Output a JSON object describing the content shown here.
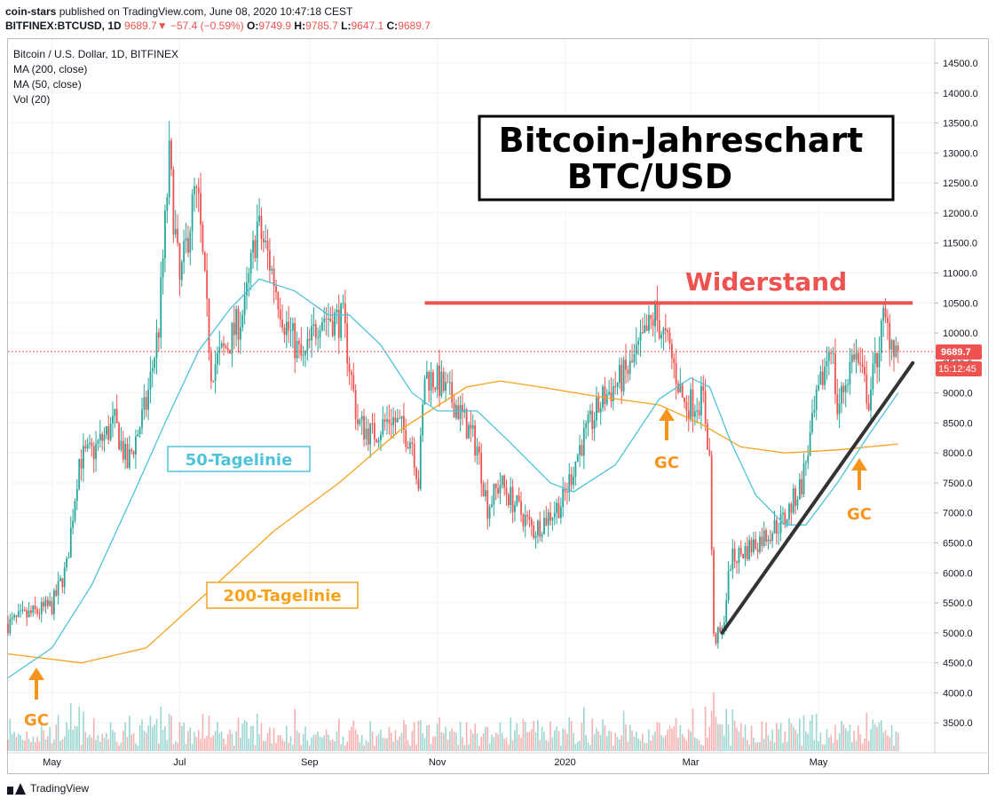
{
  "header": {
    "author": "coin-stars",
    "published_text": "published on TradingView.com, June 08, 2020 10:47:18 CEST",
    "symbol": "BITFINEX:BTCUSD, 1D",
    "last": "9689.7",
    "change": "−57.4 (−0.59%)",
    "open_label": "O:",
    "open": "9749.9",
    "high_label": "H:",
    "high": "9785.7",
    "low_label": "L:",
    "low": "9647.1",
    "close_label": "C:",
    "close": "9689.7"
  },
  "legend": {
    "title": "Bitcoin / U.S. Dollar, 1D, BITFINEX",
    "ma200": "MA (200, close)",
    "ma50": "MA (50, close)",
    "vol": "Vol (20)"
  },
  "footer": {
    "brand": "TradingView"
  },
  "colors": {
    "up": "#26a69a",
    "down": "#ef5350",
    "ma50": "#4fc3d9",
    "ma200": "#f7a21b",
    "resistance": "#ef5350",
    "trend": "#333333",
    "gc": "#f7941d"
  },
  "annotations": {
    "title_line1": "Bitcoin-Jahreschart",
    "title_line2": "BTC/USD",
    "resistance_label": "Widerstand",
    "ma50_label": "50-Tagelinie",
    "ma200_label": "200-Tagelinie",
    "gc_label": "GC"
  },
  "chart_data": {
    "type": "candlestick",
    "y_unit": "USD",
    "ylim": [
      3000,
      14900
    ],
    "y_ticks": [
      "3500.0",
      "4000.0",
      "4500.0",
      "5000.0",
      "5500.0",
      "6000.0",
      "6500.0",
      "7000.0",
      "7500.0",
      "8000.0",
      "8500.0",
      "9000.0",
      "9500.0",
      "10000.0",
      "10500.0",
      "11000.0",
      "11500.0",
      "12000.0",
      "12500.0",
      "13000.0",
      "13500.0",
      "14000.0",
      "14500.0"
    ],
    "x_labels": [
      {
        "label": "May",
        "date": "2019-05-01"
      },
      {
        "label": "Jul",
        "date": "2019-07-01"
      },
      {
        "label": "Sep",
        "date": "2019-09-01"
      },
      {
        "label": "Nov",
        "date": "2019-11-01"
      },
      {
        "label": "2020",
        "date": "2020-01-01"
      },
      {
        "label": "Mar",
        "date": "2020-03-01"
      },
      {
        "label": "May",
        "date": "2020-05-01"
      }
    ],
    "x_range": [
      "2019-04-10",
      "2020-06-08"
    ],
    "last_price": "9689.7",
    "countdown": "15:12:45",
    "resistance": {
      "price": 10500,
      "from": "2019-10-26",
      "to": "2020-06-15"
    },
    "trendline": {
      "from": {
        "date": "2020-03-16",
        "price": 5000
      },
      "to": {
        "date": "2020-06-15",
        "price": 9500
      }
    },
    "price_path": [
      [
        "2019-04-10",
        5150
      ],
      [
        "2019-04-20",
        5300
      ],
      [
        "2019-05-01",
        5450
      ],
      [
        "2019-05-08",
        6100
      ],
      [
        "2019-05-14",
        7900
      ],
      [
        "2019-05-20",
        8000
      ],
      [
        "2019-05-31",
        8500
      ],
      [
        "2019-06-06",
        7800
      ],
      [
        "2019-06-15",
        8800
      ],
      [
        "2019-06-21",
        10100
      ],
      [
        "2019-06-26",
        12900
      ],
      [
        "2019-06-28",
        12000
      ],
      [
        "2019-07-01",
        10800
      ],
      [
        "2019-07-08",
        12300
      ],
      [
        "2019-07-10",
        12100
      ],
      [
        "2019-07-16",
        9400
      ],
      [
        "2019-07-24",
        9800
      ],
      [
        "2019-08-01",
        10400
      ],
      [
        "2019-08-07",
        11800
      ],
      [
        "2019-08-12",
        11300
      ],
      [
        "2019-08-20",
        10200
      ],
      [
        "2019-08-29",
        9500
      ],
      [
        "2019-09-06",
        10300
      ],
      [
        "2019-09-17",
        10200
      ],
      [
        "2019-09-24",
        8500
      ],
      [
        "2019-10-01",
        8300
      ],
      [
        "2019-10-10",
        8600
      ],
      [
        "2019-10-20",
        8200
      ],
      [
        "2019-10-23",
        7500
      ],
      [
        "2019-10-26",
        9300
      ],
      [
        "2019-11-01",
        9200
      ],
      [
        "2019-11-10",
        8800
      ],
      [
        "2019-11-20",
        8100
      ],
      [
        "2019-11-25",
        7100
      ],
      [
        "2019-12-01",
        7500
      ],
      [
        "2019-12-17",
        6700
      ],
      [
        "2019-12-31",
        7200
      ],
      [
        "2020-01-08",
        8100
      ],
      [
        "2020-01-19",
        8900
      ],
      [
        "2020-02-01",
        9400
      ],
      [
        "2020-02-13",
        10300
      ],
      [
        "2020-02-20",
        9700
      ],
      [
        "2020-02-27",
        8800
      ],
      [
        "2020-03-07",
        8900
      ],
      [
        "2020-03-10",
        7900
      ],
      [
        "2020-03-12",
        4900
      ],
      [
        "2020-03-16",
        5000
      ],
      [
        "2020-03-20",
        6200
      ],
      [
        "2020-04-01",
        6500
      ],
      [
        "2020-04-15",
        6900
      ],
      [
        "2020-04-23",
        7500
      ],
      [
        "2020-04-30",
        8800
      ],
      [
        "2020-05-07",
        9900
      ],
      [
        "2020-05-10",
        8700
      ],
      [
        "2020-05-18",
        9700
      ],
      [
        "2020-05-25",
        8900
      ],
      [
        "2020-06-01",
        10200
      ],
      [
        "2020-06-08",
        9690
      ]
    ],
    "ma50_path": [
      [
        "2019-04-10",
        4250
      ],
      [
        "2019-05-01",
        4750
      ],
      [
        "2019-05-20",
        5800
      ],
      [
        "2019-06-10",
        7400
      ],
      [
        "2019-06-24",
        8500
      ],
      [
        "2019-07-10",
        9700
      ],
      [
        "2019-07-25",
        10400
      ],
      [
        "2019-08-08",
        10900
      ],
      [
        "2019-08-25",
        10700
      ],
      [
        "2019-09-10",
        10300
      ],
      [
        "2019-09-20",
        10300
      ],
      [
        "2019-10-05",
        9800
      ],
      [
        "2019-10-20",
        9000
      ],
      [
        "2019-11-01",
        8700
      ],
      [
        "2019-11-20",
        8700
      ],
      [
        "2019-12-05",
        8200
      ],
      [
        "2019-12-25",
        7500
      ],
      [
        "2020-01-05",
        7350
      ],
      [
        "2020-01-25",
        7800
      ],
      [
        "2020-02-15",
        8900
      ],
      [
        "2020-03-01",
        9250
      ],
      [
        "2020-03-10",
        9100
      ],
      [
        "2020-03-20",
        8200
      ],
      [
        "2020-04-01",
        7300
      ],
      [
        "2020-04-15",
        6800
      ],
      [
        "2020-04-25",
        6800
      ],
      [
        "2020-05-10",
        7500
      ],
      [
        "2020-05-25",
        8300
      ],
      [
        "2020-06-08",
        9000
      ]
    ],
    "ma200_path": [
      [
        "2019-04-10",
        4650
      ],
      [
        "2019-05-15",
        4500
      ],
      [
        "2019-06-15",
        4750
      ],
      [
        "2019-07-15",
        5700
      ],
      [
        "2019-08-15",
        6700
      ],
      [
        "2019-09-15",
        7500
      ],
      [
        "2019-10-15",
        8400
      ],
      [
        "2019-11-15",
        9100
      ],
      [
        "2019-12-01",
        9200
      ],
      [
        "2019-12-20",
        9100
      ],
      [
        "2020-01-15",
        8950
      ],
      [
        "2020-02-15",
        8800
      ],
      [
        "2020-03-05",
        8500
      ],
      [
        "2020-03-25",
        8100
      ],
      [
        "2020-04-15",
        8000
      ],
      [
        "2020-05-10",
        8050
      ],
      [
        "2020-06-08",
        8150
      ]
    ]
  }
}
